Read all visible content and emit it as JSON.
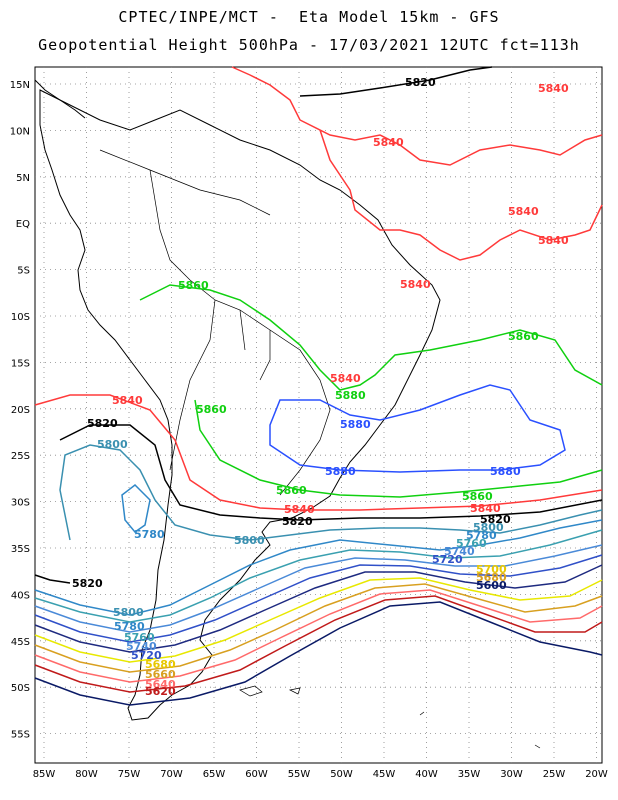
{
  "header": {
    "line1": "CPTEC/INPE/MCT -  Eta Model 15km - GFS",
    "line2": "Geopotential Height 500hPa - 17/03/2021 12UTC fct=113h"
  },
  "axes": {
    "lat_labels": [
      "15N",
      "10N",
      "5N",
      "EQ",
      "5S",
      "10S",
      "15S",
      "20S",
      "25S",
      "30S",
      "35S",
      "40S",
      "45S",
      "50S",
      "55S"
    ],
    "lon_labels": [
      "85W",
      "80W",
      "75W",
      "70W",
      "65W",
      "60W",
      "55W",
      "50W",
      "45W",
      "40W",
      "35W",
      "30W",
      "25W",
      "20W"
    ]
  },
  "colors": {
    "c5600": "#0a1a66",
    "c5620": "#c01a1a",
    "c5640": "#ff6a6a",
    "c5660": "#d8a020",
    "c5680": "#e8e800",
    "c5700": "#1e2a80",
    "c5720": "#3050c8",
    "c5740": "#4a8ad8",
    "c5760": "#3aa0b0",
    "c5780": "#3088c8",
    "c5800": "#3a90b0",
    "c5820": "#000000",
    "c5840": "#ff3a3a",
    "c5860": "#2a50ff",
    "c5880": "#10d010",
    "coast": "#000000"
  },
  "contour_labels": {
    "l5820_top": "5820",
    "l5840_a": "5840",
    "l5840_b": "5840",
    "l5840_c": "5840",
    "l5840_d": "5840",
    "l5840_e": "5840",
    "l5860_a": "5860",
    "l5860_b": "5860",
    "l5860_c": "5860",
    "l5840_f": "5840",
    "l5880_a": "5880",
    "l5880_b": "5880",
    "l5880_c": "5880",
    "l5840_g": "5840",
    "l5820_a": "5820",
    "l5800_a": "5800",
    "l5860_d": "5860",
    "l5780_a": "5780",
    "l5800_b": "5800",
    "l5860_e": "5860",
    "l5840_h": "5840",
    "l5820_b": "5820",
    "l5820_c": "5820",
    "l5840_i": "5840",
    "l5860_f": "5860",
    "l5800_c": "5800",
    "l5780_b": "5780",
    "l5760_a": "5760",
    "l5740_a": "5740",
    "l5720_a": "5720",
    "l5780_c": "5780",
    "l5760_b": "5760",
    "l5740_b": "5740",
    "l5720_b": "5720",
    "l5820_d": "5820",
    "l5800_d": "5800",
    "l5780_d": "5780",
    "l5700_a": "5700",
    "l5680_a": "5680",
    "l5660_a": "5660",
    "l5640_a": "5640",
    "l5620_a": "5620",
    "l5600_a": "5600"
  }
}
